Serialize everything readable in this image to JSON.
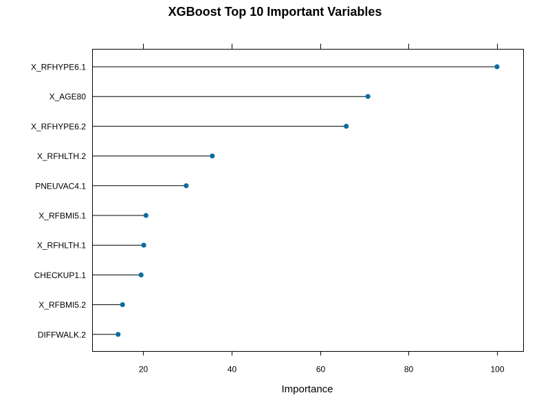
{
  "chart_data": {
    "type": "dot",
    "title": "XGBoost Top 10 Important Variables",
    "xlabel": "Importance",
    "ylabel": "",
    "xlim": [
      8.5,
      106
    ],
    "x_ticks": [
      20,
      40,
      60,
      80,
      100
    ],
    "grid": false,
    "categories": [
      "X_RFHYPE6.1",
      "X_AGE80",
      "X_RFHYPE6.2",
      "X_RFHLTH.2",
      "PNEUVAC4.1",
      "X_RFBMI5.1",
      "X_RFHLTH.1",
      "CHECKUP1.1",
      "X_RFBMI5.2",
      "DIFFWALK.2"
    ],
    "values": [
      100,
      70.8,
      65.9,
      35.6,
      29.7,
      20.6,
      20.1,
      19.5,
      15.3,
      14.3
    ],
    "colors": {
      "point": "#0a6ea0",
      "line": "#000000",
      "frame": "#000000"
    }
  }
}
